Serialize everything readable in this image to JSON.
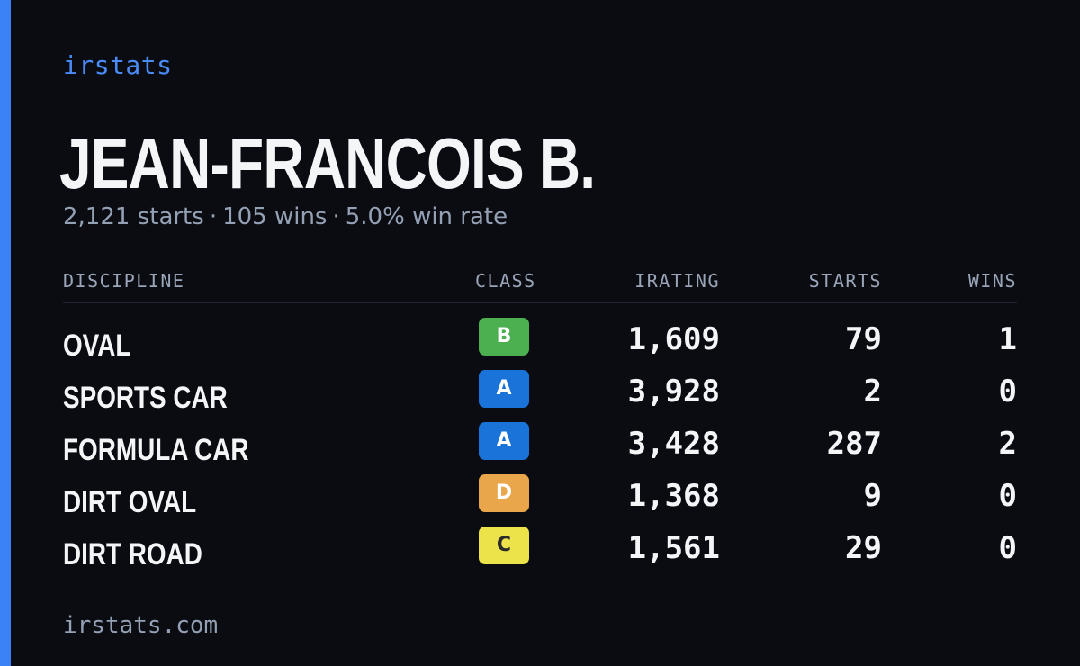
{
  "brand": "irstats",
  "driver": {
    "name": "JEAN-FRANCOIS B.",
    "starts_text": "2,121 starts",
    "wins_text": "105 wins",
    "win_rate_text": "5.0% win rate",
    "separator": "·"
  },
  "table": {
    "headers": {
      "discipline": "DISCIPLINE",
      "class": "CLASS",
      "irating": "IRATING",
      "starts": "STARTS",
      "wins": "WINS"
    },
    "rows": [
      {
        "discipline": "OVAL",
        "class": "B",
        "class_color": "#4caf50",
        "class_text_color": "#ffffff",
        "irating": "1,609",
        "starts": "79",
        "wins": "1"
      },
      {
        "discipline": "SPORTS CAR",
        "class": "A",
        "class_color": "#1a73d9",
        "class_text_color": "#ffffff",
        "irating": "3,928",
        "starts": "2",
        "wins": "0"
      },
      {
        "discipline": "FORMULA CAR",
        "class": "A",
        "class_color": "#1a73d9",
        "class_text_color": "#ffffff",
        "irating": "3,428",
        "starts": "287",
        "wins": "2"
      },
      {
        "discipline": "DIRT OVAL",
        "class": "D",
        "class_color": "#eaa64a",
        "class_text_color": "#ffffff",
        "irating": "1,368",
        "starts": "9",
        "wins": "0"
      },
      {
        "discipline": "DIRT ROAD",
        "class": "C",
        "class_color": "#ece34a",
        "class_text_color": "#2a2a2a",
        "irating": "1,561",
        "starts": "29",
        "wins": "0"
      }
    ]
  },
  "footer": "irstats.com",
  "colors": {
    "background": "#0a0c12",
    "accent": "#3b82f6",
    "brand_text": "#4a8cf7",
    "muted_text": "#94a0b4"
  }
}
